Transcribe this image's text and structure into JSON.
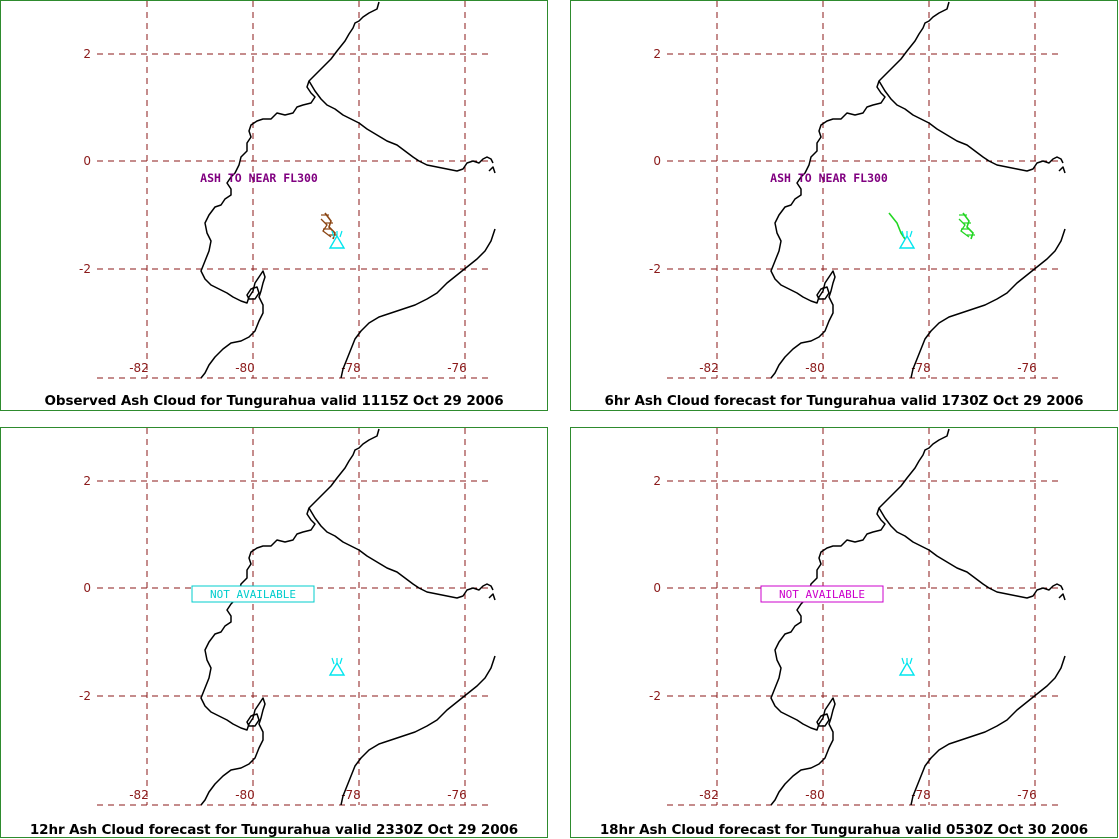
{
  "colors": {
    "grid": "#8b1a1a",
    "coast": "#000000",
    "volcano": "#00e5ee",
    "border": "#2e8b2e",
    "annotation": "#800080"
  },
  "axes": {
    "x_ticks": [
      "-82",
      "-80",
      "-78",
      "-76"
    ],
    "y_ticks": [
      "2",
      "0",
      "-2"
    ]
  },
  "panels": [
    {
      "id": "observed",
      "caption": "Observed Ash Cloud for Tungurahua valid 1115Z Oct 29 2006",
      "annotation": "ASH TO NEAR FL300",
      "annotation_color": "#800080",
      "ash_color": "#8b4513",
      "status_text": ""
    },
    {
      "id": "6hr",
      "caption": "6hr Ash Cloud forecast for Tungurahua valid 1730Z Oct 29 2006",
      "annotation": "ASH TO NEAR FL300",
      "annotation_color": "#800080",
      "ash_color": "#22d622",
      "status_text": ""
    },
    {
      "id": "12hr",
      "caption": "12hr Ash Cloud forecast for Tungurahua valid 2330Z Oct 29 2006",
      "annotation": "",
      "ash_color": "",
      "status_text": "NOT AVAILABLE",
      "status_color": "#00cdcd"
    },
    {
      "id": "18hr",
      "caption": "18hr Ash Cloud forecast for Tungurahua valid 0530Z Oct 30 2006",
      "annotation": "",
      "ash_color": "",
      "status_text": "NOT AVAILABLE",
      "status_color": "#cc00cc"
    }
  ]
}
